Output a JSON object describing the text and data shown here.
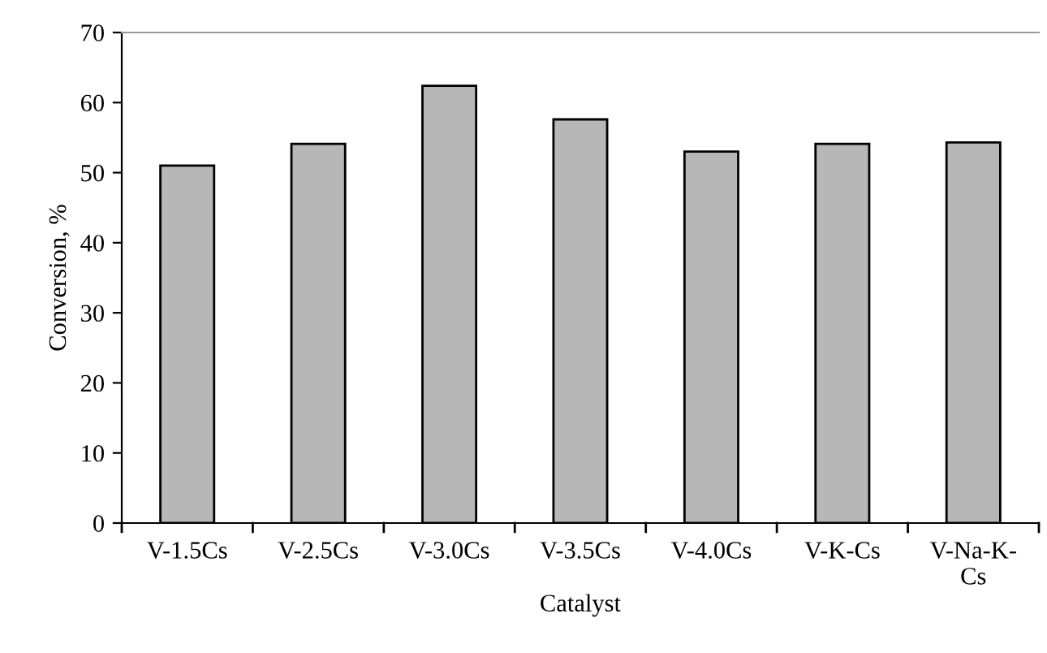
{
  "chart_data": {
    "type": "bar",
    "xlabel": "Catalyst",
    "ylabel": "Conversion, %",
    "categories": [
      "V-1.5Cs",
      "V-2.5Cs",
      "V-3.0Cs",
      "V-3.5Cs",
      "V-4.0Cs",
      "V-K-Cs",
      "V-Na-K-\nCs"
    ],
    "values": [
      51,
      54.1,
      62.4,
      57.6,
      53,
      54.1,
      54.3
    ],
    "color": "#b7b7b7",
    "ylim": [
      0,
      70
    ],
    "yticks": [
      0,
      10,
      20,
      30,
      40,
      50,
      60,
      70
    ],
    "grid": false,
    "legend": false
  }
}
